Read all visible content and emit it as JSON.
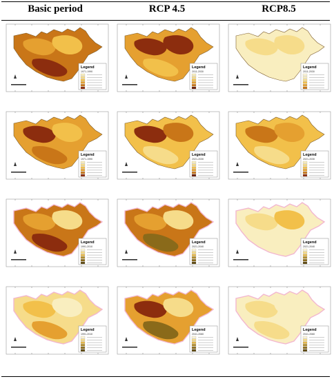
{
  "headers": [
    "Basic period",
    "RCP 4.5",
    "RCP8.5"
  ],
  "legend_title": "Legend",
  "colors": {
    "pale": "#f9eebf",
    "light": "#f6dc8a",
    "yellow": "#f2c04a",
    "orange": "#e5a030",
    "dark_orange": "#c97618",
    "brown": "#8c2d0e",
    "dark_brown": "#6a1f08",
    "olive": "#8a6a1a",
    "olive_dark": "#5f4a12",
    "outline_pink": "#f2b6d0"
  },
  "rows": [
    {
      "period_basic": "1971-1990",
      "period_future": "2011-2030",
      "panels": [
        {
          "scenario": "Basic period",
          "base": "dark_orange",
          "blobs": [
            "orange",
            "yellow",
            "brown"
          ],
          "palette": "orange"
        },
        {
          "scenario": "RCP 4.5",
          "base": "orange",
          "blobs": [
            "brown",
            "brown",
            "yellow"
          ],
          "palette": "brown"
        },
        {
          "scenario": "RCP8.5",
          "base": "pale",
          "blobs": [
            "light",
            "light",
            "pale"
          ],
          "palette": "yellow"
        }
      ]
    },
    {
      "period_basic": "1971-1990",
      "period_future": "2021-2030",
      "panels": [
        {
          "scenario": "Basic period",
          "base": "orange",
          "blobs": [
            "brown",
            "yellow",
            "dark_orange"
          ],
          "palette": "orange"
        },
        {
          "scenario": "RCP 4.5",
          "base": "yellow",
          "blobs": [
            "brown",
            "dark_orange",
            "light"
          ],
          "palette": "brown"
        },
        {
          "scenario": "RCP8.5",
          "base": "yellow",
          "blobs": [
            "dark_orange",
            "orange",
            "light"
          ],
          "palette": "orange"
        }
      ]
    },
    {
      "period_basic": "1991-2010",
      "period_future": "2021-2040",
      "panels": [
        {
          "scenario": "Basic period",
          "base": "dark_orange",
          "blobs": [
            "orange",
            "light",
            "brown"
          ],
          "palette": "olive"
        },
        {
          "scenario": "RCP 4.5",
          "base": "dark_orange",
          "blobs": [
            "orange",
            "light",
            "olive"
          ],
          "palette": "olive"
        },
        {
          "scenario": "RCP8.5",
          "base": "pale",
          "blobs": [
            "light",
            "yellow",
            "pale"
          ],
          "palette": "olive"
        }
      ]
    },
    {
      "period_basic": "1991-2010",
      "period_future": "2041-2060",
      "panels": [
        {
          "scenario": "Basic period",
          "base": "light",
          "blobs": [
            "yellow",
            "pale",
            "orange"
          ],
          "palette": "olive"
        },
        {
          "scenario": "RCP 4.5",
          "base": "orange",
          "blobs": [
            "brown",
            "light",
            "olive"
          ],
          "palette": "olive"
        },
        {
          "scenario": "RCP8.5",
          "base": "pale",
          "blobs": [
            "light",
            "pale",
            "light"
          ],
          "palette": "olive"
        }
      ]
    }
  ]
}
